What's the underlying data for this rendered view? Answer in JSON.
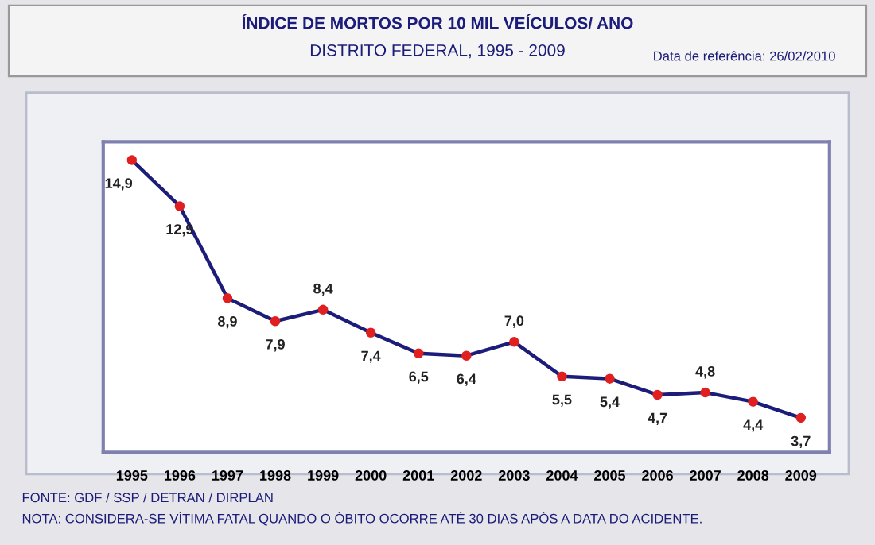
{
  "chart_data": {
    "type": "line",
    "title": "ÍNDICE DE MORTOS POR 10 MIL VEÍCULOS/ ANO",
    "subtitle": "DISTRITO FEDERAL, 1995 - 2009",
    "categories": [
      "1995",
      "1996",
      "1997",
      "1998",
      "1999",
      "2000",
      "2001",
      "2002",
      "2003",
      "2004",
      "2005",
      "2006",
      "2007",
      "2008",
      "2009"
    ],
    "series": [
      {
        "color": "#1c1c7a",
        "values": [
          14.9,
          12.9,
          8.9,
          7.9,
          8.4,
          7.4,
          6.5,
          6.4,
          7.0,
          5.5,
          5.4,
          4.7,
          4.8,
          4.4,
          3.7
        ],
        "value_labels": [
          "14,9",
          "12,9",
          "8,9",
          "7,9",
          "8,4",
          "7,4",
          "6,5",
          "6,4",
          "7,0",
          "5,5",
          "5,4",
          "4,7",
          "4,8",
          "4,4",
          "3,7"
        ]
      }
    ],
    "ylim": [
      2.2,
      15.7
    ],
    "tick_labels": "x",
    "marker": "circle",
    "line_style": "solid",
    "annotations": [
      "Data de referência: 26/02/2010",
      "FONTE: GDF / SSP / DETRAN / DIRPLAN",
      "NOTA: CONSIDERA-SE VÍTIMA FATAL QUANDO O ÓBITO OCORRE ATÉ 30 DIAS APÓS A DATA DO ACIDENTE."
    ]
  }
}
